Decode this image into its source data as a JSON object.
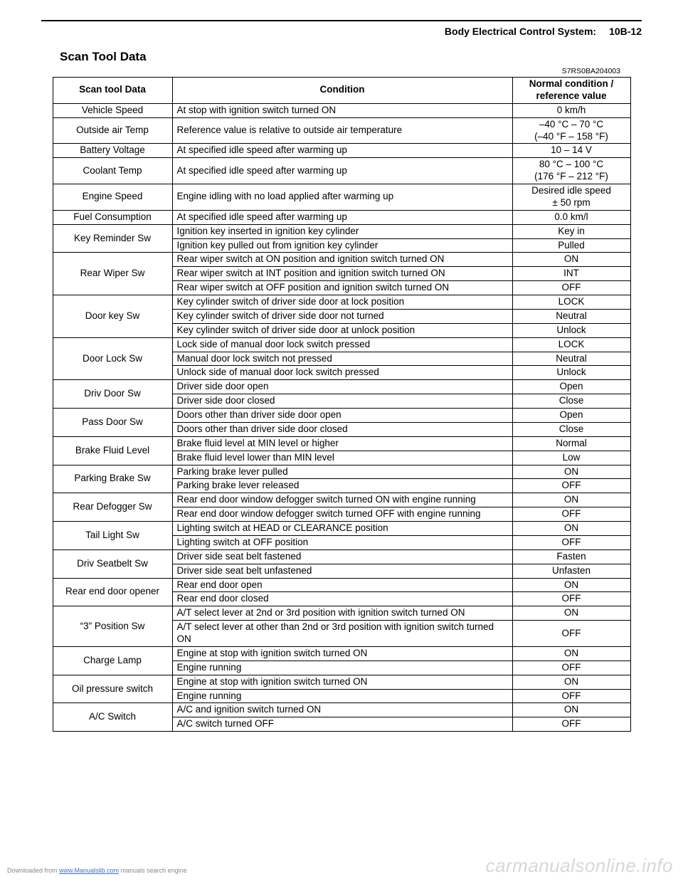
{
  "header": {
    "section": "Body Electrical Control System:",
    "pageref": "10B-12"
  },
  "section_heading": "Scan Tool Data",
  "docid": "S7RS0BA204003",
  "table": {
    "columns": [
      "Scan tool Data",
      "Condition",
      "Normal condition / reference value"
    ],
    "rows": [
      {
        "param": "Vehicle Speed",
        "conds": [
          {
            "c": "At stop with ignition switch turned ON",
            "v": "0 km/h"
          }
        ]
      },
      {
        "param": "Outside air Temp",
        "conds": [
          {
            "c": "Reference value is relative to outside air temperature",
            "v": "–40 °C – 70 °C\n(–40 °F – 158 °F)"
          }
        ]
      },
      {
        "param": "Battery Voltage",
        "conds": [
          {
            "c": "At specified idle speed after warming up",
            "v": "10 – 14 V"
          }
        ]
      },
      {
        "param": "Coolant Temp",
        "conds": [
          {
            "c": "At specified idle speed after warming up",
            "v": "80 °C – 100 °C\n(176 °F – 212 °F)"
          }
        ]
      },
      {
        "param": "Engine Speed",
        "conds": [
          {
            "c": "Engine idling with no load applied after warming up",
            "v": "Desired idle speed\n± 50 rpm"
          }
        ]
      },
      {
        "param": "Fuel Consumption",
        "conds": [
          {
            "c": "At specified idle speed after warming up",
            "v": "0.0 km/l"
          }
        ]
      },
      {
        "param": "Key Reminder Sw",
        "conds": [
          {
            "c": "Ignition key inserted in ignition key cylinder",
            "v": "Key in"
          },
          {
            "c": "Ignition key pulled out from ignition key cylinder",
            "v": "Pulled"
          }
        ]
      },
      {
        "param": "Rear Wiper Sw",
        "conds": [
          {
            "c": "Rear wiper switch at ON position and ignition switch turned ON",
            "v": "ON"
          },
          {
            "c": "Rear wiper switch at INT position and ignition switch turned ON",
            "v": "INT"
          },
          {
            "c": "Rear wiper switch at OFF position and ignition switch turned ON",
            "v": "OFF"
          }
        ]
      },
      {
        "param": "Door key Sw",
        "conds": [
          {
            "c": "Key cylinder switch of driver side door at lock position",
            "v": "LOCK"
          },
          {
            "c": "Key cylinder switch of driver side door not turned",
            "v": "Neutral"
          },
          {
            "c": "Key cylinder switch of driver side door at unlock position",
            "v": "Unlock"
          }
        ]
      },
      {
        "param": "Door Lock Sw",
        "conds": [
          {
            "c": "Lock side of manual door lock switch pressed",
            "v": "LOCK"
          },
          {
            "c": "Manual door lock switch not pressed",
            "v": "Neutral"
          },
          {
            "c": "Unlock side of manual door lock switch pressed",
            "v": "Unlock"
          }
        ]
      },
      {
        "param": "Driv Door Sw",
        "conds": [
          {
            "c": "Driver side door open",
            "v": "Open"
          },
          {
            "c": "Driver side door closed",
            "v": "Close"
          }
        ]
      },
      {
        "param": "Pass Door Sw",
        "conds": [
          {
            "c": "Doors other than driver side door open",
            "v": "Open"
          },
          {
            "c": "Doors other than driver side door closed",
            "v": "Close"
          }
        ]
      },
      {
        "param": "Brake Fluid Level",
        "conds": [
          {
            "c": "Brake fluid level at MIN level or higher",
            "v": "Normal"
          },
          {
            "c": "Brake fluid level lower than MIN level",
            "v": "Low"
          }
        ]
      },
      {
        "param": "Parking Brake Sw",
        "conds": [
          {
            "c": "Parking brake lever pulled",
            "v": "ON"
          },
          {
            "c": "Parking brake lever released",
            "v": "OFF"
          }
        ]
      },
      {
        "param": "Rear Defogger Sw",
        "conds": [
          {
            "c": "Rear end door window defogger switch turned ON with engine running",
            "v": "ON"
          },
          {
            "c": "Rear end door window defogger switch turned OFF with engine running",
            "v": "OFF"
          }
        ]
      },
      {
        "param": "Tail Light Sw",
        "conds": [
          {
            "c": "Lighting switch at HEAD or CLEARANCE position",
            "v": "ON"
          },
          {
            "c": "Lighting switch at OFF position",
            "v": "OFF"
          }
        ]
      },
      {
        "param": "Driv Seatbelt Sw",
        "conds": [
          {
            "c": "Driver side seat belt fastened",
            "v": "Fasten"
          },
          {
            "c": "Driver side seat belt unfastened",
            "v": "Unfasten"
          }
        ]
      },
      {
        "param": "Rear end door opener",
        "conds": [
          {
            "c": "Rear end door open",
            "v": "ON"
          },
          {
            "c": "Rear end door closed",
            "v": "OFF"
          }
        ]
      },
      {
        "param": "“3” Position Sw",
        "conds": [
          {
            "c": "A/T select lever at 2nd or 3rd position with ignition switch turned ON",
            "v": "ON"
          },
          {
            "c": "A/T select lever at other than 2nd or 3rd position with ignition switch turned ON",
            "v": "OFF"
          }
        ]
      },
      {
        "param": "Charge Lamp",
        "conds": [
          {
            "c": "Engine at stop with ignition switch turned ON",
            "v": "ON"
          },
          {
            "c": "Engine running",
            "v": "OFF"
          }
        ]
      },
      {
        "param": "Oil pressure switch",
        "conds": [
          {
            "c": "Engine at stop with ignition switch turned ON",
            "v": "ON"
          },
          {
            "c": "Engine running",
            "v": "OFF"
          }
        ]
      },
      {
        "param": "A/C Switch",
        "conds": [
          {
            "c": "A/C and ignition switch turned ON",
            "v": "ON"
          },
          {
            "c": "A/C switch turned OFF",
            "v": "OFF"
          }
        ]
      }
    ]
  },
  "footer": {
    "prefix": "Downloaded from ",
    "link_text": "www.Manualslib.com",
    "suffix": " manuals search engine"
  },
  "watermark": "carmanualsonline.info"
}
